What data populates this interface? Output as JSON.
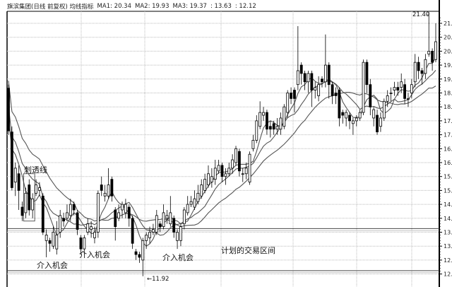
{
  "header": {
    "title": "旗滨集团(日线 前复权) 均线指标",
    "ma1": "MA1: 20.34",
    "ma2": "MA2: 19.93",
    "ma3": "MA3: 19.37",
    "line1": ": 13.63",
    "line2": ": 12.12"
  },
  "annotations": {
    "piercing_line": "刺透线",
    "entry1": "介入机会",
    "entry2": "介入机会",
    "entry3": "介入机会",
    "trade_range": "计划的交易区间",
    "low_label": "←11.92",
    "high_label": "21.40"
  },
  "colors": {
    "up_fill": "#ffffff",
    "down_fill": "#000000",
    "candle_stroke": "#000000",
    "ma_line": "#555555",
    "grid": "#bbbbbb"
  },
  "chart_data": {
    "type": "candlestick",
    "title": "",
    "ylim": [
      11.8,
      21.5
    ],
    "y_ticks": [
      21.0,
      20.5,
      20.0,
      19.5,
      19.0,
      18.5,
      18.0,
      17.5,
      17.0,
      16.5,
      16.0,
      15.5,
      15.0,
      14.5,
      14.0,
      13.5,
      13.0,
      12.5,
      12.0
    ],
    "grid": true,
    "moving_averages": [
      "MA1",
      "MA2",
      "MA3"
    ],
    "horizontal_lines": [
      13.63,
      12.12
    ],
    "candles_ohlc": [
      [
        18.67,
        18.8,
        17.0,
        17.14
      ],
      [
        17.1,
        17.3,
        15.0,
        15.1
      ],
      [
        15.3,
        16.0,
        14.8,
        15.8
      ],
      [
        15.6,
        15.9,
        14.3,
        15.0
      ],
      [
        14.4,
        14.6,
        13.9,
        14.1
      ],
      [
        14.2,
        15.1,
        14.0,
        14.9
      ],
      [
        15.2,
        15.4,
        14.1,
        14.3
      ],
      [
        14.3,
        14.9,
        14.0,
        14.7
      ],
      [
        14.9,
        15.4,
        14.8,
        15.2
      ],
      [
        15.0,
        15.3,
        14.8,
        15.1
      ],
      [
        14.8,
        14.9,
        13.4,
        13.5
      ],
      [
        13.2,
        13.6,
        12.6,
        13.4
      ],
      [
        13.2,
        13.3,
        12.8,
        13.1
      ],
      [
        13.0,
        13.7,
        12.9,
        13.5
      ],
      [
        12.9,
        13.9,
        12.7,
        13.4
      ],
      [
        13.5,
        14.3,
        13.3,
        14.1
      ],
      [
        14.0,
        14.2,
        13.7,
        13.9
      ],
      [
        14.0,
        14.5,
        13.9,
        14.2
      ],
      [
        14.1,
        14.7,
        13.9,
        14.5
      ],
      [
        14.5,
        14.6,
        14.1,
        14.3
      ],
      [
        14.2,
        14.3,
        13.4,
        13.6
      ],
      [
        13.3,
        13.4,
        12.7,
        12.9
      ],
      [
        12.9,
        13.4,
        12.7,
        13.3
      ],
      [
        13.5,
        14.0,
        13.4,
        13.8
      ],
      [
        13.6,
        13.9,
        13.3,
        13.7
      ],
      [
        13.3,
        13.7,
        13.1,
        13.5
      ],
      [
        13.5,
        15.0,
        13.3,
        14.9
      ],
      [
        15.2,
        15.5,
        14.8,
        15.0
      ],
      [
        14.8,
        15.2,
        14.6,
        14.9
      ],
      [
        14.8,
        15.8,
        14.7,
        15.2
      ],
      [
        15.4,
        15.5,
        14.6,
        14.8
      ],
      [
        14.3,
        14.4,
        13.2,
        13.7
      ],
      [
        14.0,
        14.5,
        13.9,
        14.2
      ],
      [
        14.3,
        14.6,
        14.0,
        14.5
      ],
      [
        14.2,
        14.7,
        14.0,
        14.5
      ],
      [
        14.4,
        14.5,
        13.7,
        14.0
      ],
      [
        14.0,
        14.1,
        12.9,
        13.1
      ],
      [
        12.8,
        12.9,
        12.5,
        12.7
      ],
      [
        12.7,
        12.8,
        12.4,
        12.6
      ],
      [
        12.5,
        13.3,
        11.92,
        13.2
      ],
      [
        13.2,
        13.5,
        12.9,
        13.4
      ],
      [
        13.3,
        13.7,
        13.1,
        13.5
      ],
      [
        13.5,
        13.8,
        13.4,
        13.6
      ],
      [
        13.5,
        14.3,
        13.4,
        14.1
      ],
      [
        13.8,
        13.9,
        13.5,
        13.7
      ],
      [
        13.7,
        14.5,
        13.6,
        14.2
      ],
      [
        14.0,
        14.3,
        13.8,
        14.1
      ],
      [
        13.8,
        14.8,
        13.7,
        14.2
      ],
      [
        14.0,
        14.1,
        13.3,
        13.5
      ],
      [
        13.2,
        13.6,
        12.9,
        13.5
      ],
      [
        13.2,
        13.8,
        13.0,
        13.7
      ],
      [
        13.8,
        14.4,
        13.6,
        14.3
      ],
      [
        14.2,
        14.8,
        14.1,
        14.5
      ],
      [
        14.5,
        14.8,
        14.4,
        14.6
      ],
      [
        14.4,
        15.0,
        14.3,
        14.7
      ],
      [
        14.6,
        15.2,
        14.5,
        14.9
      ],
      [
        14.8,
        15.4,
        14.7,
        15.2
      ],
      [
        15.0,
        15.6,
        14.9,
        15.4
      ],
      [
        15.2,
        15.9,
        15.1,
        15.6
      ],
      [
        15.3,
        15.8,
        15.1,
        15.5
      ],
      [
        15.4,
        16.1,
        15.2,
        15.8
      ],
      [
        15.7,
        16.1,
        15.6,
        15.9
      ],
      [
        15.9,
        16.0,
        15.3,
        15.5
      ],
      [
        15.5,
        15.8,
        15.2,
        15.6
      ],
      [
        15.6,
        16.0,
        15.5,
        15.8
      ],
      [
        15.8,
        16.3,
        15.6,
        16.1
      ],
      [
        16.0,
        16.6,
        15.9,
        16.5
      ],
      [
        16.4,
        16.5,
        15.5,
        15.7
      ],
      [
        15.6,
        15.8,
        15.3,
        15.6
      ],
      [
        15.6,
        16.0,
        15.4,
        15.8
      ],
      [
        15.3,
        16.4,
        15.2,
        16.3
      ],
      [
        16.5,
        17.0,
        16.4,
        16.8
      ],
      [
        16.8,
        17.7,
        16.7,
        17.5
      ],
      [
        17.3,
        18.2,
        17.2,
        17.8
      ],
      [
        17.7,
        18.0,
        17.5,
        17.8
      ],
      [
        17.8,
        17.9,
        17.0,
        17.2
      ],
      [
        17.3,
        17.5,
        16.9,
        17.2
      ],
      [
        17.4,
        17.5,
        17.0,
        17.2
      ],
      [
        17.2,
        17.6,
        17.0,
        17.3
      ],
      [
        17.2,
        17.8,
        17.0,
        17.6
      ],
      [
        17.3,
        18.1,
        17.2,
        18.0
      ],
      [
        17.8,
        18.6,
        17.6,
        18.5
      ],
      [
        18.5,
        18.7,
        18.1,
        18.3
      ],
      [
        18.6,
        18.7,
        17.8,
        18.3
      ],
      [
        18.8,
        20.9,
        18.6,
        19.3
      ],
      [
        19.5,
        19.6,
        18.8,
        19.2
      ],
      [
        19.2,
        19.3,
        18.6,
        18.9
      ],
      [
        18.9,
        19.3,
        18.5,
        19.2
      ],
      [
        19.2,
        19.3,
        18.0,
        18.6
      ],
      [
        18.6,
        18.9,
        18.3,
        18.7
      ],
      [
        18.4,
        19.1,
        18.2,
        18.8
      ],
      [
        19.0,
        19.1,
        18.7,
        18.9
      ],
      [
        18.9,
        20.6,
        18.7,
        19.5
      ],
      [
        19.5,
        19.6,
        18.3,
        18.8
      ],
      [
        18.8,
        18.9,
        18.1,
        18.4
      ],
      [
        18.5,
        18.7,
        18.1,
        18.4
      ],
      [
        18.6,
        18.7,
        17.3,
        17.6
      ],
      [
        17.8,
        17.9,
        17.4,
        17.7
      ],
      [
        17.6,
        17.9,
        17.3,
        17.8
      ],
      [
        17.7,
        17.8,
        17.2,
        17.5
      ],
      [
        17.4,
        17.6,
        17.0,
        17.5
      ],
      [
        17.5,
        17.7,
        17.3,
        17.6
      ],
      [
        17.6,
        17.9,
        17.5,
        17.8
      ],
      [
        17.8,
        19.7,
        17.7,
        19.6
      ],
      [
        19.6,
        19.7,
        18.5,
        18.8
      ],
      [
        18.8,
        19.0,
        17.7,
        18.0
      ],
      [
        17.6,
        18.0,
        17.3,
        17.9
      ],
      [
        17.7,
        17.9,
        17.0,
        17.1
      ],
      [
        17.3,
        17.8,
        17.1,
        17.6
      ],
      [
        17.6,
        18.3,
        17.5,
        18.2
      ],
      [
        18.2,
        18.6,
        18.0,
        18.4
      ],
      [
        18.5,
        18.7,
        18.2,
        18.5
      ],
      [
        18.6,
        18.9,
        18.4,
        18.7
      ],
      [
        18.7,
        18.9,
        18.4,
        18.6
      ],
      [
        18.7,
        19.2,
        18.5,
        18.9
      ],
      [
        18.8,
        19.0,
        18.1,
        18.3
      ],
      [
        18.3,
        18.5,
        18.0,
        18.3
      ],
      [
        18.5,
        19.0,
        18.3,
        18.8
      ],
      [
        18.9,
        19.9,
        18.7,
        19.6
      ],
      [
        19.6,
        19.8,
        19.0,
        19.3
      ],
      [
        19.3,
        19.4,
        18.8,
        19.2
      ],
      [
        19.2,
        19.9,
        19.0,
        19.7
      ],
      [
        19.9,
        21.4,
        19.8,
        20.0
      ],
      [
        20.0,
        20.1,
        19.3,
        19.6
      ],
      [
        19.7,
        21.0,
        19.6,
        20.34
      ]
    ]
  }
}
